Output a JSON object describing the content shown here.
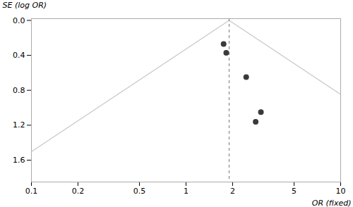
{
  "chart_data": {
    "type": "scatter",
    "xlabel": "OR (fixed)",
    "ylabel": "SE (log OR)",
    "log": "x",
    "grid": false,
    "x": [
      1.75,
      1.82,
      2.45,
      3.05,
      2.82
    ],
    "y": [
      0.27,
      0.37,
      0.65,
      1.05,
      1.16
    ],
    "color": "#3a3a3a",
    "funnel": {
      "color": "#c8c8c8",
      "left": {
        "x": [
          1.9,
          0.05579
        ],
        "y": [
          0,
          1.8
        ]
      },
      "right": {
        "x": [
          1.9,
          64.706
        ],
        "y": [
          0,
          1.8
        ]
      }
    },
    "fixed_effect": {
      "x": 1.9,
      "color": "#888888",
      "line_style": "dashed"
    },
    "xlim": [
      0.1,
      10
    ],
    "xticks": [
      0.1,
      0.2,
      0.5,
      1,
      2,
      5,
      10
    ],
    "ylim": [
      1.85,
      -0.02
    ],
    "yticks": [
      {
        "value": 0,
        "label": "0.0"
      },
      0.4,
      0.8,
      1.2,
      1.6
    ]
  }
}
